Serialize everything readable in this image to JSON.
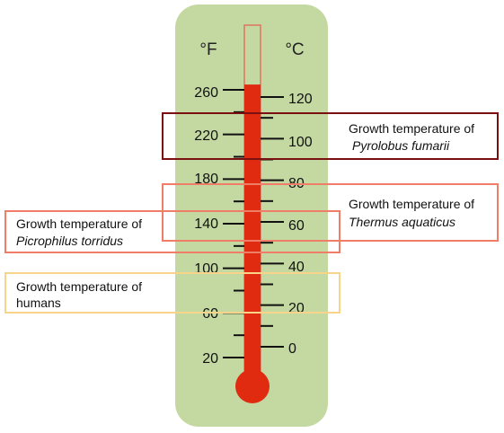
{
  "units": {
    "fahrenheit": "°F",
    "celsius": "°C"
  },
  "colors": {
    "panel": "#c4d9a2",
    "mercury": "#e02b10",
    "tube_outline": "#e0745e",
    "pyrolobus_box": "#7a1010",
    "thermus_box": "#ef7d67",
    "picrophilus_box": "#ef7d67",
    "humans_box": "#f7d48a"
  },
  "thermometer": {
    "fahrenheit_labels": [
      "260",
      "220",
      "180",
      "140",
      "100",
      "60",
      "20"
    ],
    "celsius_labels": [
      "120",
      "100",
      "80",
      "60",
      "40",
      "20",
      "0"
    ],
    "mercury_level_celsius": 126
  },
  "annotations": {
    "pyrolobus": {
      "line1": "Growth temperature of",
      "line2": "Pyrolobus fumarii"
    },
    "thermus": {
      "line1": "Growth temperature of",
      "line2": "Thermus aquaticus"
    },
    "picrophilus": {
      "line1": "Growth temperature of",
      "line2": "Picrophilus torridus"
    },
    "humans": {
      "line1": "Growth temperature of",
      "line2": "humans"
    }
  }
}
